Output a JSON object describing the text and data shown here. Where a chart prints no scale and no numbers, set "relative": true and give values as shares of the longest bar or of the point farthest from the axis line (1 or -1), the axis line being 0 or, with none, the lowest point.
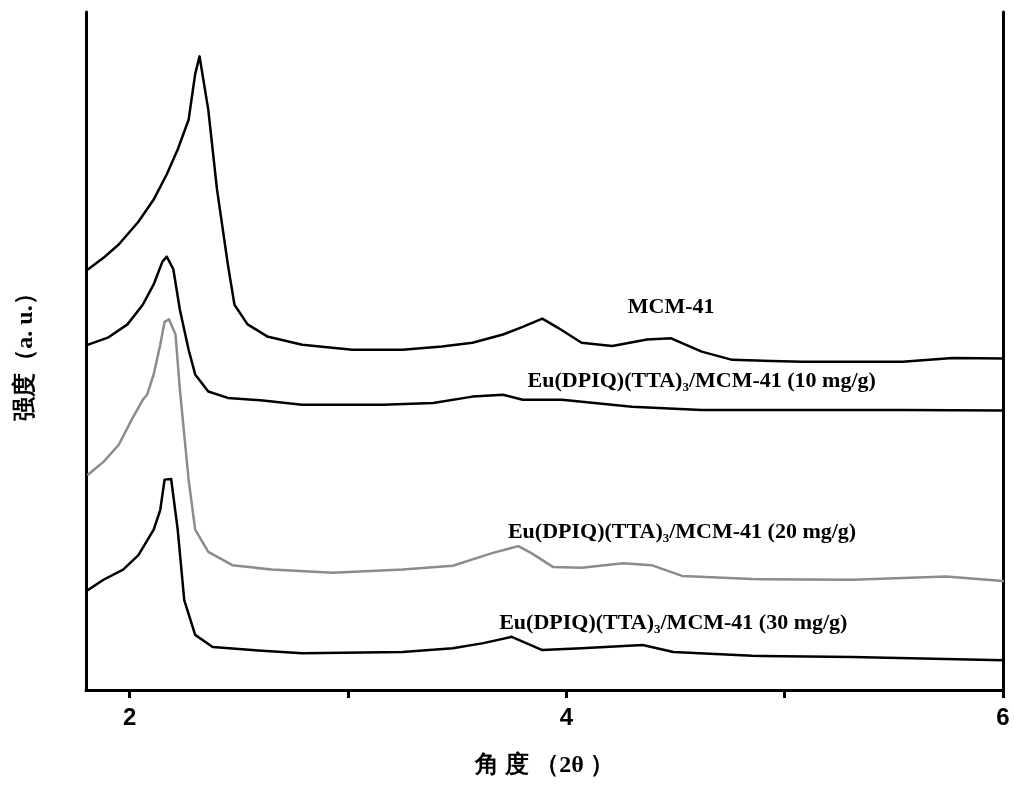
{
  "chart_data": {
    "type": "line",
    "relative": true,
    "xlabel": "角 度 （2θ ）",
    "ylabel": "强度（a. u.）",
    "xlim": [
      1.8,
      6.0
    ],
    "xticks": [
      2,
      {
        "value": 3,
        "label": null
      },
      4,
      {
        "value": 5,
        "label": null
      },
      6
    ],
    "grid": false,
    "legend": false,
    "marker": "none",
    "line_style": "solid",
    "series": [
      {
        "name": "MCM-41",
        "color": "#000000",
        "x": [
          1.81,
          1.88,
          1.95,
          2.04,
          2.11,
          2.17,
          2.22,
          2.27,
          2.3,
          2.32,
          2.36,
          2.4,
          2.45,
          2.48,
          2.54,
          2.63,
          2.79,
          3.02,
          3.25,
          3.43,
          3.57,
          3.71,
          3.8,
          3.89,
          3.96,
          4.07,
          4.21,
          4.37,
          4.48,
          4.62,
          4.76,
          5.08,
          5.54,
          5.77,
          6.0
        ],
        "values": [
          0.664,
          0.682,
          0.703,
          0.739,
          0.774,
          0.814,
          0.853,
          0.9,
          0.972,
          1.0,
          0.916,
          0.79,
          0.671,
          0.608,
          0.577,
          0.558,
          0.545,
          0.537,
          0.537,
          0.542,
          0.548,
          0.561,
          0.573,
          0.586,
          0.572,
          0.548,
          0.543,
          0.553,
          0.555,
          0.534,
          0.521,
          0.518,
          0.518,
          0.524,
          0.523
        ]
      },
      {
        "name": "Eu(DPIQ)(TTA)$_{3}$/MCM-41 (10 mg/g)",
        "color": "#000000",
        "x": [
          1.81,
          1.9,
          1.99,
          2.06,
          2.11,
          2.15,
          2.17,
          2.2,
          2.23,
          2.27,
          2.3,
          2.36,
          2.45,
          2.61,
          2.79,
          3.16,
          3.39,
          3.57,
          3.71,
          3.8,
          3.98,
          4.3,
          4.62,
          5.08,
          5.54,
          6.0
        ],
        "values": [
          0.545,
          0.556,
          0.577,
          0.608,
          0.64,
          0.676,
          0.684,
          0.664,
          0.6,
          0.537,
          0.498,
          0.471,
          0.461,
          0.457,
          0.45,
          0.45,
          0.453,
          0.463,
          0.466,
          0.458,
          0.458,
          0.447,
          0.442,
          0.442,
          0.442,
          0.441
        ]
      },
      {
        "name": "Eu(DPIQ)(TTA)$_{3}$/MCM-41 (20 mg/g)",
        "color": "#8c8c8c",
        "x": [
          1.81,
          1.88,
          1.95,
          2.01,
          2.06,
          2.08,
          2.11,
          2.14,
          2.16,
          2.18,
          2.21,
          2.23,
          2.27,
          2.3,
          2.36,
          2.47,
          2.65,
          2.93,
          3.25,
          3.48,
          3.66,
          3.78,
          3.84,
          3.94,
          4.07,
          4.26,
          4.39,
          4.53,
          4.85,
          5.31,
          5.74,
          6.0
        ],
        "values": [
          0.34,
          0.36,
          0.387,
          0.427,
          0.458,
          0.466,
          0.498,
          0.545,
          0.581,
          0.585,
          0.561,
          0.474,
          0.332,
          0.253,
          0.218,
          0.197,
          0.19,
          0.185,
          0.19,
          0.196,
          0.216,
          0.227,
          0.216,
          0.194,
          0.193,
          0.2,
          0.197,
          0.18,
          0.175,
          0.174,
          0.179,
          0.172
        ]
      },
      {
        "name": "Eu(DPIQ)(TTA)$_{3}$/MCM-41 (30 mg/g)",
        "color": "#000000",
        "x": [
          1.81,
          1.88,
          1.97,
          2.04,
          2.11,
          2.14,
          2.16,
          2.19,
          2.22,
          2.25,
          2.3,
          2.38,
          2.56,
          2.79,
          3.25,
          3.48,
          3.62,
          3.75,
          3.89,
          4.07,
          4.35,
          4.49,
          4.85,
          5.31,
          6.0
        ],
        "values": [
          0.158,
          0.174,
          0.19,
          0.213,
          0.253,
          0.284,
          0.332,
          0.333,
          0.253,
          0.142,
          0.087,
          0.068,
          0.063,
          0.058,
          0.06,
          0.066,
          0.074,
          0.084,
          0.063,
          0.066,
          0.071,
          0.06,
          0.054,
          0.052,
          0.047
        ]
      }
    ]
  }
}
